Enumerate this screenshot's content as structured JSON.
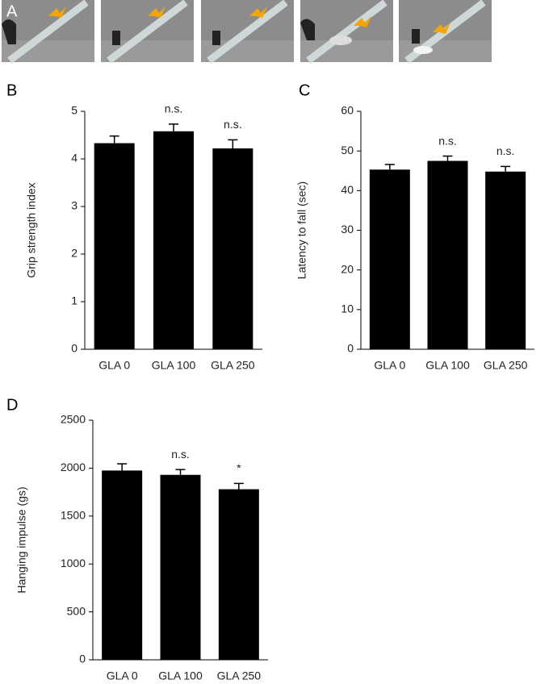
{
  "photo_panel": {
    "label": "A"
  },
  "chart_data": [
    {
      "type": "bar",
      "panel_label": "B",
      "ylabel": "Grip strength index",
      "categories": [
        "GLA 0",
        "GLA 100",
        "GLA 250"
      ],
      "values": [
        4.33,
        4.58,
        4.22
      ],
      "errors": [
        0.15,
        0.15,
        0.18
      ],
      "annotations": [
        null,
        "n.s.",
        "n.s."
      ],
      "color": "#000000",
      "ylim": [
        0,
        5
      ],
      "yticks": [
        0,
        1,
        2,
        3,
        4,
        5
      ]
    },
    {
      "type": "bar",
      "panel_label": "C",
      "ylabel": "Latency to fall (sec)",
      "categories": [
        "GLA 0",
        "GLA 100",
        "GLA 250"
      ],
      "values": [
        45.3,
        47.5,
        44.8
      ],
      "errors": [
        1.3,
        1.2,
        1.3
      ],
      "annotations": [
        null,
        "n.s.",
        "n.s."
      ],
      "color": "#000000",
      "ylim": [
        0,
        60
      ],
      "yticks": [
        0,
        10,
        20,
        30,
        40,
        50,
        60
      ]
    },
    {
      "type": "bar",
      "panel_label": "D",
      "ylabel": "Hanging impulse (gs)",
      "categories": [
        "GLA 0",
        "GLA 100",
        "GLA 250"
      ],
      "values": [
        1975,
        1930,
        1780
      ],
      "errors": [
        70,
        55,
        60
      ],
      "annotations": [
        null,
        "n.s.",
        "*"
      ],
      "color": "#000000",
      "ylim": [
        0,
        2500
      ],
      "yticks": [
        0,
        500,
        1000,
        1500,
        2000,
        2500
      ]
    }
  ]
}
